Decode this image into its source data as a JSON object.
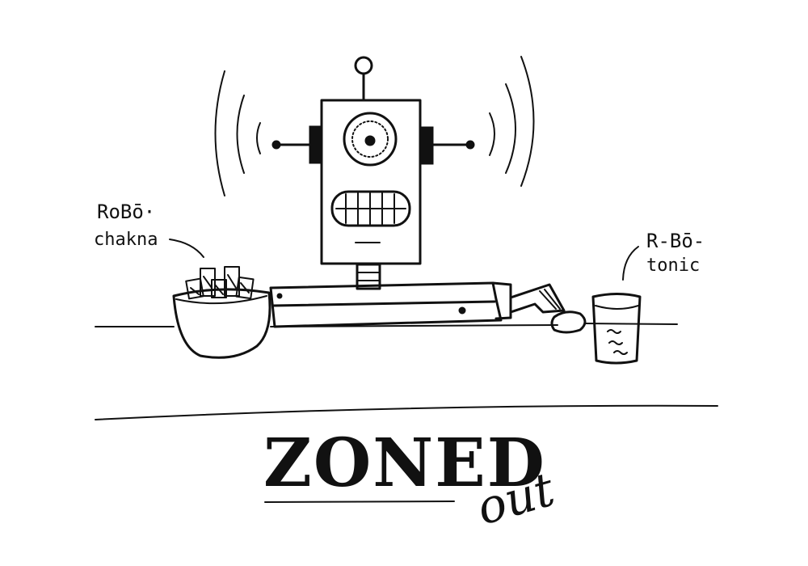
{
  "labels": {
    "chakna_line1": "RoBō·",
    "chakna_line2": "chakna",
    "tonic_line1": "R-Bō-",
    "tonic_line2": "tonic"
  },
  "title": {
    "main": "ZONED",
    "sub": "out"
  },
  "colors": {
    "ink": "#111111",
    "paper": "#ffffff"
  }
}
